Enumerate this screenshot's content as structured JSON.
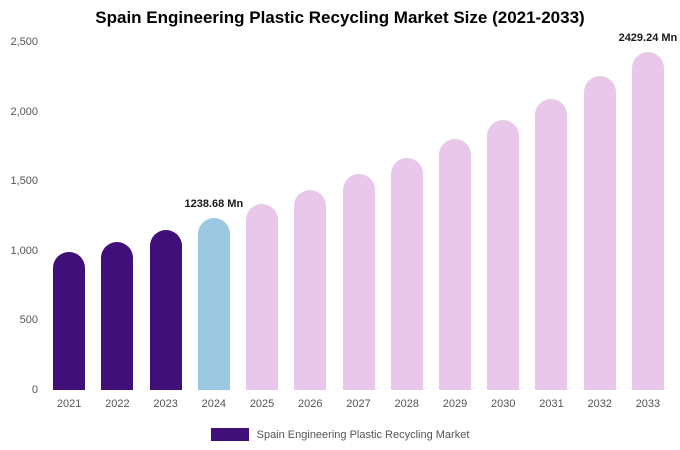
{
  "title": "Spain Engineering Plastic Recycling Market Size (2021-2033)",
  "legend": {
    "label": "Spain Engineering Plastic Recycling Market"
  },
  "colors": {
    "historical": "#400f78",
    "current": "#9cc8e2",
    "forecast": "#e8c7eb",
    "legend_swatch": "#400f78"
  },
  "chart_data": {
    "type": "bar",
    "title": "Spain Engineering Plastic Recycling Market Size (2021-2033)",
    "categories": [
      "2021",
      "2022",
      "2023",
      "2024",
      "2025",
      "2026",
      "2027",
      "2028",
      "2029",
      "2030",
      "2031",
      "2032",
      "2033"
    ],
    "values": [
      990,
      1065,
      1150,
      1238.68,
      1335,
      1440,
      1550,
      1670,
      1800,
      1940,
      2090,
      2255,
      2429.24
    ],
    "bar_color_keys": [
      "historical",
      "historical",
      "historical",
      "current",
      "forecast",
      "forecast",
      "forecast",
      "forecast",
      "forecast",
      "forecast",
      "forecast",
      "forecast",
      "forecast"
    ],
    "annotations": [
      {
        "index": 3,
        "text": "1238.68 Mn"
      },
      {
        "index": 12,
        "text": "2429.24 Mn"
      }
    ],
    "xlabel": "",
    "ylabel": "",
    "ylim": [
      0,
      2500
    ],
    "yticks": [
      0,
      500,
      1000,
      1500,
      2000,
      2500
    ],
    "ytick_labels": [
      "0",
      "500",
      "1,000",
      "1,500",
      "2,000",
      "2,500"
    ],
    "grid": false,
    "legend_position": "bottom",
    "legend_entries": [
      {
        "label": "Spain Engineering Plastic Recycling Market",
        "color_key": "historical"
      }
    ]
  }
}
